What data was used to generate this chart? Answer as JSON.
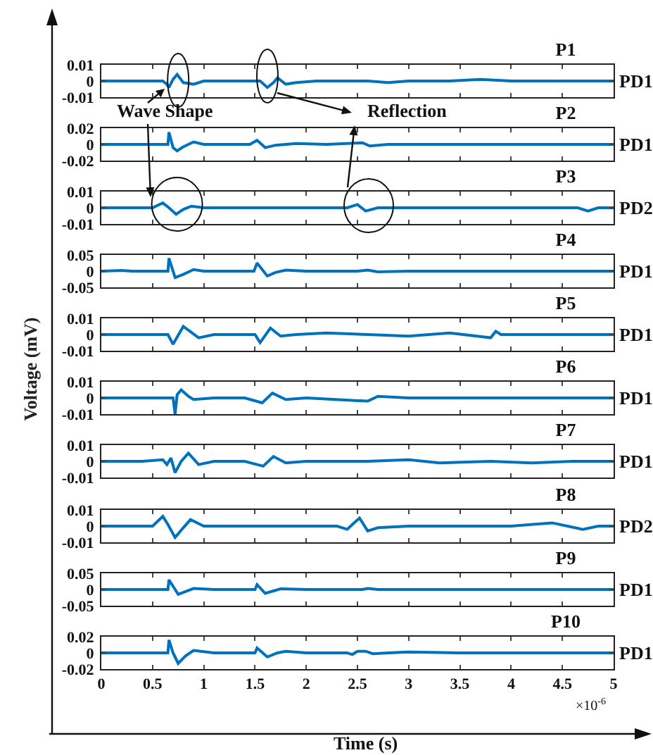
{
  "chart_data": [
    {
      "type": "line",
      "title": "P1",
      "annotations": [
        "PD1",
        "Wave Shape",
        "Reflection"
      ],
      "color": "#0072bd",
      "x": [
        0,
        0.2,
        0.4,
        0.6,
        0.64,
        0.66,
        0.7,
        0.74,
        0.8,
        0.9,
        1.0,
        1.2,
        1.4,
        1.55,
        1.62,
        1.68,
        1.72,
        1.8,
        1.9,
        2.1,
        2.4,
        2.6,
        2.8,
        3.0,
        3.4,
        3.7,
        4.0,
        4.5,
        5.0
      ],
      "values": [
        0,
        0,
        0,
        0,
        -0.002,
        -0.004,
        0.001,
        0.004,
        -0.001,
        -0.002,
        0,
        0,
        0,
        0,
        -0.004,
        -0.001,
        0.002,
        -0.002,
        -0.001,
        0,
        0,
        0,
        -0.001,
        0,
        0,
        0.001,
        0,
        0,
        0
      ],
      "xlim": [
        0,
        5
      ],
      "xticks": [
        {
          "value": 0,
          "label": null
        },
        {
          "value": 0.5,
          "label": null
        },
        {
          "value": 1,
          "label": null
        },
        {
          "value": 1.5,
          "label": null
        },
        {
          "value": 2,
          "label": null
        },
        {
          "value": 2.5,
          "label": null
        },
        {
          "value": 3,
          "label": null
        },
        {
          "value": 3.5,
          "label": null
        },
        {
          "value": 4,
          "label": null
        },
        {
          "value": 4.5,
          "label": null
        },
        {
          "value": 5,
          "label": null
        }
      ],
      "ylim": [
        -0.01,
        0.01
      ],
      "yticks": [
        -0.01,
        0,
        0.01
      ],
      "tick_labels": "y"
    },
    {
      "type": "line",
      "title": "P2",
      "annotations": [
        "PD1"
      ],
      "color": "#0072bd",
      "x": [
        0,
        0.3,
        0.6,
        0.65,
        0.66,
        0.7,
        0.74,
        0.8,
        0.9,
        1.0,
        1.2,
        1.45,
        1.52,
        1.6,
        1.7,
        1.9,
        2.2,
        2.55,
        2.62,
        2.8,
        3.2,
        3.6,
        4.0,
        4.5,
        5.0
      ],
      "values": [
        0,
        0,
        0,
        0,
        0.015,
        -0.004,
        -0.008,
        -0.003,
        0.003,
        0,
        0,
        0,
        0.005,
        -0.004,
        -0.001,
        0.001,
        0,
        0.002,
        -0.002,
        0,
        0,
        0,
        0,
        0,
        0
      ],
      "xlim": [
        0,
        5
      ],
      "xticks": [
        {
          "value": 0,
          "label": null
        },
        {
          "value": 0.5,
          "label": null
        },
        {
          "value": 1,
          "label": null
        },
        {
          "value": 1.5,
          "label": null
        },
        {
          "value": 2,
          "label": null
        },
        {
          "value": 2.5,
          "label": null
        },
        {
          "value": 3,
          "label": null
        },
        {
          "value": 3.5,
          "label": null
        },
        {
          "value": 4,
          "label": null
        },
        {
          "value": 4.5,
          "label": null
        },
        {
          "value": 5,
          "label": null
        }
      ],
      "ylim": [
        -0.02,
        0.02
      ],
      "yticks": [
        -0.02,
        0,
        0.02
      ],
      "tick_labels": "y"
    },
    {
      "type": "line",
      "title": "P3",
      "annotations": [
        "PD2"
      ],
      "color": "#0072bd",
      "x": [
        0,
        0.3,
        0.5,
        0.6,
        0.66,
        0.73,
        0.8,
        0.88,
        1.0,
        1.3,
        1.6,
        2.0,
        2.4,
        2.5,
        2.58,
        2.7,
        2.9,
        3.3,
        3.8,
        4.2,
        4.5,
        4.65,
        4.75,
        4.85,
        5.0
      ],
      "values": [
        0,
        0,
        0,
        0.003,
        0,
        -0.004,
        -0.001,
        0.001,
        0,
        0,
        0,
        0,
        0,
        0.002,
        -0.002,
        0,
        0,
        0,
        0,
        0,
        0,
        0,
        -0.002,
        0,
        0
      ],
      "xlim": [
        0,
        5
      ],
      "xticks": [
        {
          "value": 0,
          "label": null
        },
        {
          "value": 0.5,
          "label": null
        },
        {
          "value": 1,
          "label": null
        },
        {
          "value": 1.5,
          "label": null
        },
        {
          "value": 2,
          "label": null
        },
        {
          "value": 2.5,
          "label": null
        },
        {
          "value": 3,
          "label": null
        },
        {
          "value": 3.5,
          "label": null
        },
        {
          "value": 4,
          "label": null
        },
        {
          "value": 4.5,
          "label": null
        },
        {
          "value": 5,
          "label": null
        }
      ],
      "ylim": [
        -0.01,
        0.01
      ],
      "yticks": [
        -0.01,
        0,
        0.01
      ],
      "tick_labels": "y"
    },
    {
      "type": "line",
      "title": "P4",
      "annotations": [
        "PD1"
      ],
      "color": "#0072bd",
      "x": [
        0,
        0.2,
        0.3,
        0.6,
        0.65,
        0.66,
        0.72,
        0.8,
        0.9,
        1.0,
        1.2,
        1.49,
        1.52,
        1.62,
        1.7,
        1.8,
        2.0,
        2.5,
        2.6,
        2.7,
        3.0,
        3.5,
        4.0,
        4.5,
        5.0
      ],
      "values": [
        0,
        0.002,
        0,
        0,
        0,
        0.04,
        -0.02,
        -0.01,
        0.005,
        0,
        0,
        0,
        0.025,
        -0.015,
        -0.004,
        0.003,
        0,
        0,
        0.003,
        -0.002,
        0,
        0,
        0,
        0,
        0
      ],
      "xlim": [
        0,
        5
      ],
      "xticks": [
        {
          "value": 0,
          "label": null
        },
        {
          "value": 0.5,
          "label": null
        },
        {
          "value": 1,
          "label": null
        },
        {
          "value": 1.5,
          "label": null
        },
        {
          "value": 2,
          "label": null
        },
        {
          "value": 2.5,
          "label": null
        },
        {
          "value": 3,
          "label": null
        },
        {
          "value": 3.5,
          "label": null
        },
        {
          "value": 4,
          "label": null
        },
        {
          "value": 4.5,
          "label": null
        },
        {
          "value": 5,
          "label": null
        }
      ],
      "ylim": [
        -0.05,
        0.05
      ],
      "yticks": [
        -0.05,
        0,
        0.05
      ],
      "tick_labels": "y"
    },
    {
      "type": "line",
      "title": "P5",
      "ylabel": "Voltage (mV)",
      "annotations": [
        "PD1"
      ],
      "color": "#0072bd",
      "x": [
        0,
        0.3,
        0.65,
        0.7,
        0.8,
        0.95,
        1.1,
        1.3,
        1.5,
        1.55,
        1.65,
        1.75,
        1.9,
        2.2,
        2.6,
        3.0,
        3.4,
        3.8,
        3.85,
        3.9,
        4.2,
        4.6,
        5.0
      ],
      "values": [
        0,
        0,
        0,
        -0.006,
        0.005,
        -0.002,
        0,
        0,
        0,
        -0.005,
        0.004,
        -0.001,
        0,
        0.001,
        0,
        -0.001,
        0.001,
        -0.002,
        0.002,
        0,
        0,
        0,
        0
      ],
      "xlim": [
        0,
        5
      ],
      "xticks": [
        {
          "value": 0,
          "label": null
        },
        {
          "value": 0.5,
          "label": null
        },
        {
          "value": 1,
          "label": null
        },
        {
          "value": 1.5,
          "label": null
        },
        {
          "value": 2,
          "label": null
        },
        {
          "value": 2.5,
          "label": null
        },
        {
          "value": 3,
          "label": null
        },
        {
          "value": 3.5,
          "label": null
        },
        {
          "value": 4,
          "label": null
        },
        {
          "value": 4.5,
          "label": null
        },
        {
          "value": 5,
          "label": null
        }
      ],
      "ylim": [
        -0.01,
        0.01
      ],
      "yticks": [
        -0.01,
        0,
        0.01
      ],
      "tick_labels": "y"
    },
    {
      "type": "line",
      "title": "P6",
      "annotations": [
        "PD1"
      ],
      "color": "#0072bd",
      "x": [
        0,
        0.3,
        0.7,
        0.72,
        0.74,
        0.78,
        0.85,
        0.9,
        1.1,
        1.4,
        1.57,
        1.67,
        1.8,
        2.0,
        2.6,
        2.7,
        3.0,
        3.5,
        4.0,
        4.5,
        5.0
      ],
      "values": [
        0,
        0,
        0,
        -0.01,
        0.002,
        0.005,
        0.001,
        -0.001,
        0,
        0,
        -0.003,
        0.003,
        -0.001,
        0,
        -0.002,
        0.001,
        0,
        0,
        0,
        0,
        0
      ],
      "xlim": [
        0,
        5
      ],
      "xticks": [
        {
          "value": 0,
          "label": null
        },
        {
          "value": 0.5,
          "label": null
        },
        {
          "value": 1,
          "label": null
        },
        {
          "value": 1.5,
          "label": null
        },
        {
          "value": 2,
          "label": null
        },
        {
          "value": 2.5,
          "label": null
        },
        {
          "value": 3,
          "label": null
        },
        {
          "value": 3.5,
          "label": null
        },
        {
          "value": 4,
          "label": null
        },
        {
          "value": 4.5,
          "label": null
        },
        {
          "value": 5,
          "label": null
        }
      ],
      "ylim": [
        -0.01,
        0.01
      ],
      "yticks": [
        -0.01,
        0,
        0.01
      ],
      "tick_labels": "y"
    },
    {
      "type": "line",
      "title": "P7",
      "annotations": [
        "PD1"
      ],
      "color": "#0072bd",
      "x": [
        0,
        0.4,
        0.6,
        0.64,
        0.68,
        0.72,
        0.78,
        0.85,
        0.95,
        1.1,
        1.4,
        1.58,
        1.68,
        1.8,
        2.0,
        2.6,
        3.0,
        3.3,
        3.8,
        4.2,
        4.6,
        5.0
      ],
      "values": [
        0,
        0,
        0.001,
        -0.002,
        0.002,
        -0.007,
        0,
        0.005,
        -0.002,
        0,
        0,
        -0.003,
        0.003,
        -0.001,
        0,
        0,
        0.001,
        -0.001,
        0,
        -0.001,
        0,
        0
      ],
      "xlim": [
        0,
        5
      ],
      "xticks": [
        {
          "value": 0,
          "label": null
        },
        {
          "value": 0.5,
          "label": null
        },
        {
          "value": 1,
          "label": null
        },
        {
          "value": 1.5,
          "label": null
        },
        {
          "value": 2,
          "label": null
        },
        {
          "value": 2.5,
          "label": null
        },
        {
          "value": 3,
          "label": null
        },
        {
          "value": 3.5,
          "label": null
        },
        {
          "value": 4,
          "label": null
        },
        {
          "value": 4.5,
          "label": null
        },
        {
          "value": 5,
          "label": null
        }
      ],
      "ylim": [
        -0.01,
        0.01
      ],
      "yticks": [
        -0.01,
        0,
        0.01
      ],
      "tick_labels": "y"
    },
    {
      "type": "line",
      "title": "P8",
      "annotations": [
        "PD2"
      ],
      "color": "#0072bd",
      "x": [
        0,
        0.4,
        0.5,
        0.6,
        0.65,
        0.72,
        0.8,
        0.87,
        1.0,
        1.3,
        1.8,
        2.3,
        2.4,
        2.45,
        2.52,
        2.6,
        2.7,
        3.0,
        3.5,
        4.0,
        4.4,
        4.55,
        4.7,
        4.85,
        5.0
      ],
      "values": [
        0,
        0,
        0,
        0.006,
        0.001,
        -0.007,
        -0.001,
        0.004,
        0,
        0,
        0,
        0,
        -0.002,
        0.001,
        0.005,
        -0.003,
        -0.001,
        0,
        0,
        0,
        0.002,
        0,
        -0.002,
        0,
        0
      ],
      "xlim": [
        0,
        5
      ],
      "xticks": [
        {
          "value": 0,
          "label": null
        },
        {
          "value": 0.5,
          "label": null
        },
        {
          "value": 1,
          "label": null
        },
        {
          "value": 1.5,
          "label": null
        },
        {
          "value": 2,
          "label": null
        },
        {
          "value": 2.5,
          "label": null
        },
        {
          "value": 3,
          "label": null
        },
        {
          "value": 3.5,
          "label": null
        },
        {
          "value": 4,
          "label": null
        },
        {
          "value": 4.5,
          "label": null
        },
        {
          "value": 5,
          "label": null
        }
      ],
      "ylim": [
        -0.01,
        0.01
      ],
      "yticks": [
        -0.01,
        0,
        0.01
      ],
      "tick_labels": "y"
    },
    {
      "type": "line",
      "title": "P9",
      "annotations": [
        "PD1"
      ],
      "color": "#0072bd",
      "x": [
        0,
        0.4,
        0.65,
        0.66,
        0.75,
        0.9,
        1.1,
        1.5,
        1.52,
        1.6,
        1.75,
        2.0,
        2.55,
        2.6,
        2.7,
        3.0,
        3.5,
        4.0,
        4.5,
        5.0
      ],
      "values": [
        0,
        0,
        0,
        0.03,
        -0.015,
        0.003,
        0,
        0,
        0.015,
        -0.012,
        0.002,
        0,
        0,
        0.003,
        0,
        0,
        0,
        0,
        0,
        0
      ],
      "xlim": [
        0,
        5
      ],
      "xticks": [
        {
          "value": 0,
          "label": null
        },
        {
          "value": 0.5,
          "label": null
        },
        {
          "value": 1,
          "label": null
        },
        {
          "value": 1.5,
          "label": null
        },
        {
          "value": 2,
          "label": null
        },
        {
          "value": 2.5,
          "label": null
        },
        {
          "value": 3,
          "label": null
        },
        {
          "value": 3.5,
          "label": null
        },
        {
          "value": 4,
          "label": null
        },
        {
          "value": 4.5,
          "label": null
        },
        {
          "value": 5,
          "label": null
        }
      ],
      "ylim": [
        -0.05,
        0.05
      ],
      "yticks": [
        -0.05,
        0,
        0.05
      ],
      "tick_labels": "y"
    },
    {
      "type": "line",
      "title": "P10",
      "xlabel": "Time (s)",
      "annotations": [
        "PD1",
        "×10$^{-6}$"
      ],
      "color": "#0072bd",
      "x": [
        0,
        0.4,
        0.65,
        0.66,
        0.7,
        0.75,
        0.82,
        0.9,
        1.1,
        1.5,
        1.52,
        1.62,
        1.72,
        1.8,
        2.0,
        2.4,
        2.45,
        2.5,
        2.58,
        2.65,
        2.8,
        3.0,
        3.5,
        4.0,
        4.5,
        5.0
      ],
      "values": [
        0,
        0,
        0,
        0.016,
        0,
        -0.013,
        -0.004,
        0.003,
        0,
        0,
        0.006,
        -0.005,
        0,
        0.002,
        0,
        0,
        -0.002,
        0.002,
        0.002,
        -0.001,
        0,
        0.001,
        0,
        0,
        0,
        0
      ],
      "xlim": [
        0,
        5
      ],
      "xticks": [
        0,
        0.5,
        1,
        1.5,
        2,
        2.5,
        3,
        3.5,
        4,
        4.5,
        5
      ],
      "ylim": [
        -0.02,
        0.02
      ],
      "yticks": [
        -0.02,
        0,
        0.02
      ]
    }
  ]
}
